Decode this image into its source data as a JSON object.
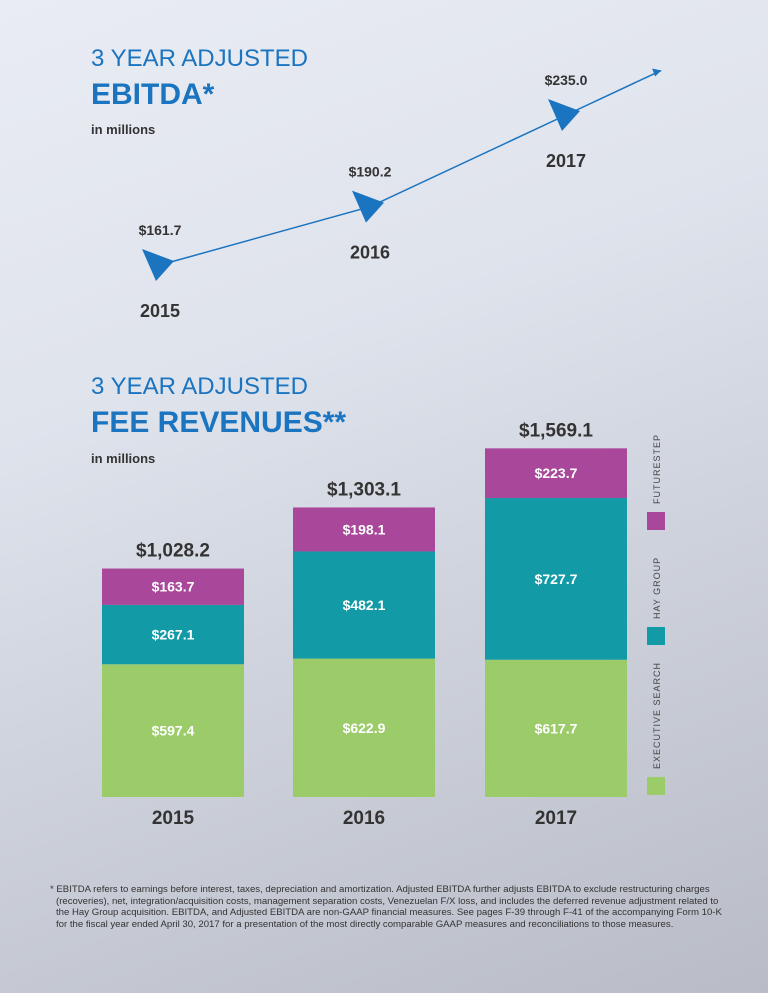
{
  "chart_data": [
    {
      "type": "line",
      "title": "3 YEAR ADJUSTED",
      "subtitle": "EBITDA*",
      "unit_note": "in millions",
      "categories": [
        "2015",
        "2016",
        "2017"
      ],
      "values": [
        161.7,
        190.2,
        235.0
      ],
      "value_labels": [
        "$161.7",
        "$190.2",
        "$235.0"
      ],
      "color": "#1a74c0"
    },
    {
      "type": "stacked-bar",
      "title": "3 YEAR ADJUSTED",
      "subtitle": "FEE REVENUES**",
      "unit_note": "in millions",
      "categories": [
        "2015",
        "2016",
        "2017"
      ],
      "series": [
        {
          "name": "EXECUTIVE SEARCH",
          "color": "#9ccc6a",
          "values": [
            597.4,
            622.9,
            617.7
          ],
          "value_labels": [
            "$597.4",
            "$622.9",
            "$617.7"
          ]
        },
        {
          "name": "HAY GROUP",
          "color": "#129ba6",
          "values": [
            267.1,
            482.1,
            727.7
          ],
          "value_labels": [
            "$267.1",
            "$482.1",
            "$727.7"
          ]
        },
        {
          "name": "FUTURESTEP",
          "color": "#a9489b",
          "values": [
            163.7,
            198.1,
            223.7
          ],
          "value_labels": [
            "$163.7",
            "$198.1",
            "$223.7"
          ]
        }
      ],
      "totals": [
        1028.2,
        1303.1,
        1569.1
      ],
      "total_labels": [
        "$1,028.2",
        "$1,303.1",
        "$1,569.1"
      ]
    }
  ],
  "footnote": "* EBITDA refers to earnings before interest, taxes, depreciation and amortization. Adjusted EBITDA further adjusts EBITDA to exclude restructuring charges (recoveries), net, integration/acquisition costs, management separation costs, Venezuelan F/X loss, and includes the deferred revenue adjustment related to the Hay Group acquisition. EBITDA, and Adjusted EBITDA are non-GAAP financial measures. See pages F-39 through F-41 of the accompanying Form 10-K for the fiscal year ended April 30, 2017 for a presentation of the most directly comparable GAAP measures and reconciliations to those measures."
}
